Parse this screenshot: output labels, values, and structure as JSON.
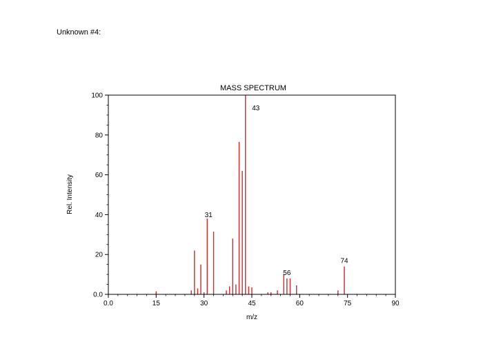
{
  "page": {
    "label": "Unknown #4:"
  },
  "chart_data": {
    "type": "bar",
    "title": "MASS SPECTRUM",
    "xlabel": "m/z",
    "ylabel": "Rel. Intensity",
    "xlim": [
      0,
      90
    ],
    "ylim": [
      0,
      100
    ],
    "x_ticks": [
      0,
      15,
      30,
      45,
      60,
      75,
      90
    ],
    "x_tick_labels": [
      "0.0",
      "15",
      "30",
      "45",
      "60",
      "75",
      "90"
    ],
    "y_ticks": [
      0,
      20,
      40,
      60,
      80,
      100
    ],
    "y_tick_labels": [
      "0.0",
      "20",
      "40",
      "60",
      "80",
      "100"
    ],
    "bar_color": "#d62728",
    "peaks": [
      {
        "mz": 15,
        "intensity": 1.5
      },
      {
        "mz": 26,
        "intensity": 2
      },
      {
        "mz": 27,
        "intensity": 22
      },
      {
        "mz": 28,
        "intensity": 3
      },
      {
        "mz": 29,
        "intensity": 15
      },
      {
        "mz": 30,
        "intensity": 1
      },
      {
        "mz": 31,
        "intensity": 38
      },
      {
        "mz": 33,
        "intensity": 31.5
      },
      {
        "mz": 37,
        "intensity": 2
      },
      {
        "mz": 38,
        "intensity": 4
      },
      {
        "mz": 39,
        "intensity": 28
      },
      {
        "mz": 40,
        "intensity": 5
      },
      {
        "mz": 41,
        "intensity": 76.5
      },
      {
        "mz": 42,
        "intensity": 62
      },
      {
        "mz": 43,
        "intensity": 100
      },
      {
        "mz": 44,
        "intensity": 4
      },
      {
        "mz": 45,
        "intensity": 3.5
      },
      {
        "mz": 50,
        "intensity": 1
      },
      {
        "mz": 51,
        "intensity": 1
      },
      {
        "mz": 53,
        "intensity": 2
      },
      {
        "mz": 55,
        "intensity": 10
      },
      {
        "mz": 56,
        "intensity": 8
      },
      {
        "mz": 57,
        "intensity": 8
      },
      {
        "mz": 59,
        "intensity": 4.5
      },
      {
        "mz": 72,
        "intensity": 2
      },
      {
        "mz": 74,
        "intensity": 14
      }
    ],
    "annotations": [
      {
        "text": "43",
        "mz": 43,
        "intensity": 100
      },
      {
        "text": "31",
        "mz": 31,
        "intensity": 38
      },
      {
        "text": "56",
        "mz": 56,
        "intensity": 8
      },
      {
        "text": "74",
        "mz": 74,
        "intensity": 14
      }
    ]
  }
}
